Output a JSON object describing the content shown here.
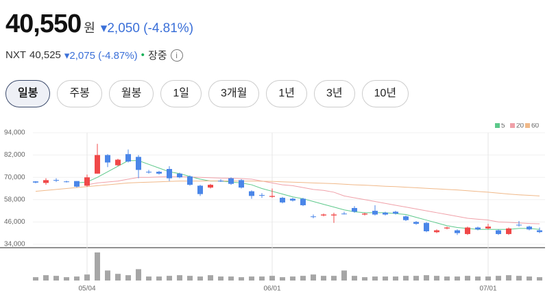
{
  "header": {
    "price": "40,550",
    "unit": "원",
    "change": "2,050",
    "change_pct": "(-4.81%)"
  },
  "nxt": {
    "label": "NXT",
    "price": "40,525",
    "change": "2,075",
    "change_pct": "(-4.87%)",
    "status": "장중"
  },
  "tabs": [
    "일봉",
    "주봉",
    "월봉",
    "1일",
    "3개월",
    "1년",
    "3년",
    "10년"
  ],
  "chart_data": {
    "type": "candlestick",
    "categories": [
      null,
      null,
      null,
      null,
      null,
      "05/04",
      null,
      null,
      null,
      null,
      null,
      null,
      null,
      null,
      null,
      null,
      null,
      null,
      null,
      null,
      null,
      null,
      null,
      "06/01",
      null,
      null,
      null,
      null,
      null,
      null,
      null,
      null,
      null,
      null,
      null,
      null,
      null,
      null,
      null,
      null,
      null,
      null,
      null,
      null,
      "07/01",
      null,
      null,
      null,
      null,
      null
    ],
    "open": [
      67800,
      67000,
      68600,
      67800,
      68000,
      65500,
      72000,
      82000,
      76500,
      82500,
      81000,
      73000,
      73000,
      74500,
      72000,
      70500,
      65500,
      64500,
      68200,
      69500,
      68500,
      62500,
      60500,
      59500,
      59000,
      58500,
      58500,
      49000,
      49500,
      49500,
      50500,
      53500,
      50000,
      52000,
      51000,
      51500,
      49000,
      46000,
      45500,
      40500,
      42500,
      41500,
      39500,
      43000,
      42500,
      41500,
      39500,
      44500,
      43500,
      41500
    ],
    "close": [
      67200,
      68500,
      68400,
      67500,
      65000,
      70000,
      82000,
      78000,
      79500,
      78500,
      74000,
      72800,
      72000,
      69500,
      70000,
      66000,
      61000,
      66000,
      67800,
      66500,
      64500,
      60000,
      60300,
      60000,
      56500,
      57500,
      55000,
      48800,
      50000,
      50000,
      50300,
      51500,
      50500,
      50000,
      50000,
      50500,
      47000,
      45000,
      41000,
      41500,
      43000,
      40000,
      43000,
      42000,
      43500,
      39500,
      42500,
      44300,
      42000,
      40550
    ],
    "high": [
      68000,
      69500,
      69500,
      68200,
      68000,
      71500,
      88000,
      82500,
      80000,
      85000,
      82000,
      74000,
      73500,
      76000,
      72500,
      71000,
      66000,
      66500,
      69000,
      70000,
      69000,
      63000,
      61500,
      64000,
      59500,
      59000,
      59000,
      50000,
      50500,
      51000,
      51500,
      54500,
      51000,
      55000,
      51500,
      52000,
      49500,
      46500,
      46000,
      42000,
      43500,
      42000,
      43500,
      43500,
      45000,
      42000,
      43000,
      46500,
      44000,
      43000
    ],
    "low": [
      66800,
      66000,
      67500,
      67200,
      64500,
      65000,
      72000,
      75500,
      76000,
      78000,
      69500,
      72000,
      71500,
      68000,
      69500,
      65500,
      60000,
      64000,
      67500,
      66000,
      64000,
      58500,
      59000,
      59000,
      56000,
      57000,
      54500,
      48000,
      49000,
      45500,
      50000,
      51000,
      49500,
      49500,
      49500,
      50000,
      46500,
      44500,
      40500,
      40000,
      42000,
      39000,
      39000,
      41500,
      42000,
      39000,
      39000,
      43500,
      41500,
      40000
    ],
    "volume": [
      5,
      8,
      7,
      5,
      6,
      9,
      42,
      15,
      10,
      8,
      17,
      6,
      6,
      7,
      8,
      7,
      6,
      8,
      6,
      6,
      5,
      6,
      6,
      7,
      5,
      6,
      7,
      9,
      7,
      7,
      15,
      7,
      5,
      6,
      6,
      6,
      7,
      7,
      8,
      7,
      6,
      6,
      7,
      6,
      6,
      7,
      8,
      7,
      6,
      5
    ],
    "volume_ylim": [
      0,
      45
    ],
    "ylim": [
      34000,
      94000
    ],
    "yticks": [
      {
        "value": 34000,
        "label": "34,000"
      },
      {
        "value": 46000,
        "label": "46,000"
      },
      {
        "value": 58000,
        "label": "58,000"
      },
      {
        "value": 70000,
        "label": "70,000"
      },
      {
        "value": 82000,
        "label": "82,000"
      },
      {
        "value": 94000,
        "label": "94,000"
      }
    ],
    "up_color": "#f04848",
    "down_color": "#4a86e8",
    "volume_color": "#a6a6a6",
    "series": [
      {
        "name": "5",
        "color": "#5cc88a",
        "values": [
          null,
          null,
          null,
          null,
          67000,
          67500,
          70000,
          73000,
          76000,
          79000,
          79000,
          77000,
          75000,
          73000,
          72000,
          70500,
          69000,
          68000,
          68000,
          67500,
          67000,
          66000,
          64000,
          62500,
          61000,
          59500,
          58500,
          57000,
          55500,
          54000,
          52500,
          51500,
          51000,
          51000,
          51000,
          50500,
          50000,
          48500,
          47000,
          45500,
          44000,
          43000,
          42500,
          42000,
          42000,
          42000,
          42000,
          42500,
          42500,
          42000
        ]
      },
      {
        "name": "20",
        "color": "#f0a0a8",
        "values": [
          null,
          null,
          null,
          null,
          null,
          66000,
          67000,
          67500,
          68000,
          69000,
          70000,
          70000,
          70200,
          70300,
          70300,
          70200,
          70000,
          69800,
          69600,
          69500,
          69300,
          69000,
          68000,
          67000,
          66000,
          65500,
          64500,
          63500,
          63000,
          62000,
          60000,
          59000,
          58000,
          57000,
          56000,
          55000,
          54000,
          53000,
          52000,
          51000,
          50000,
          49000,
          48000,
          47500,
          47000,
          46000,
          45800,
          45500,
          45200,
          45000
        ]
      },
      {
        "name": "60",
        "color": "#f0b888",
        "values": [
          62500,
          63000,
          63500,
          64000,
          64500,
          65000,
          65500,
          66000,
          66500,
          67000,
          67200,
          67400,
          67600,
          67800,
          68000,
          68000,
          68000,
          68100,
          68100,
          68100,
          68000,
          68000,
          67900,
          67800,
          67600,
          67400,
          67200,
          67000,
          66800,
          66600,
          66300,
          66000,
          65800,
          65500,
          65200,
          65000,
          64700,
          64400,
          64100,
          63800,
          63500,
          63200,
          62800,
          62400,
          62000,
          61500,
          61000,
          60600,
          60300,
          60000
        ]
      }
    ]
  }
}
